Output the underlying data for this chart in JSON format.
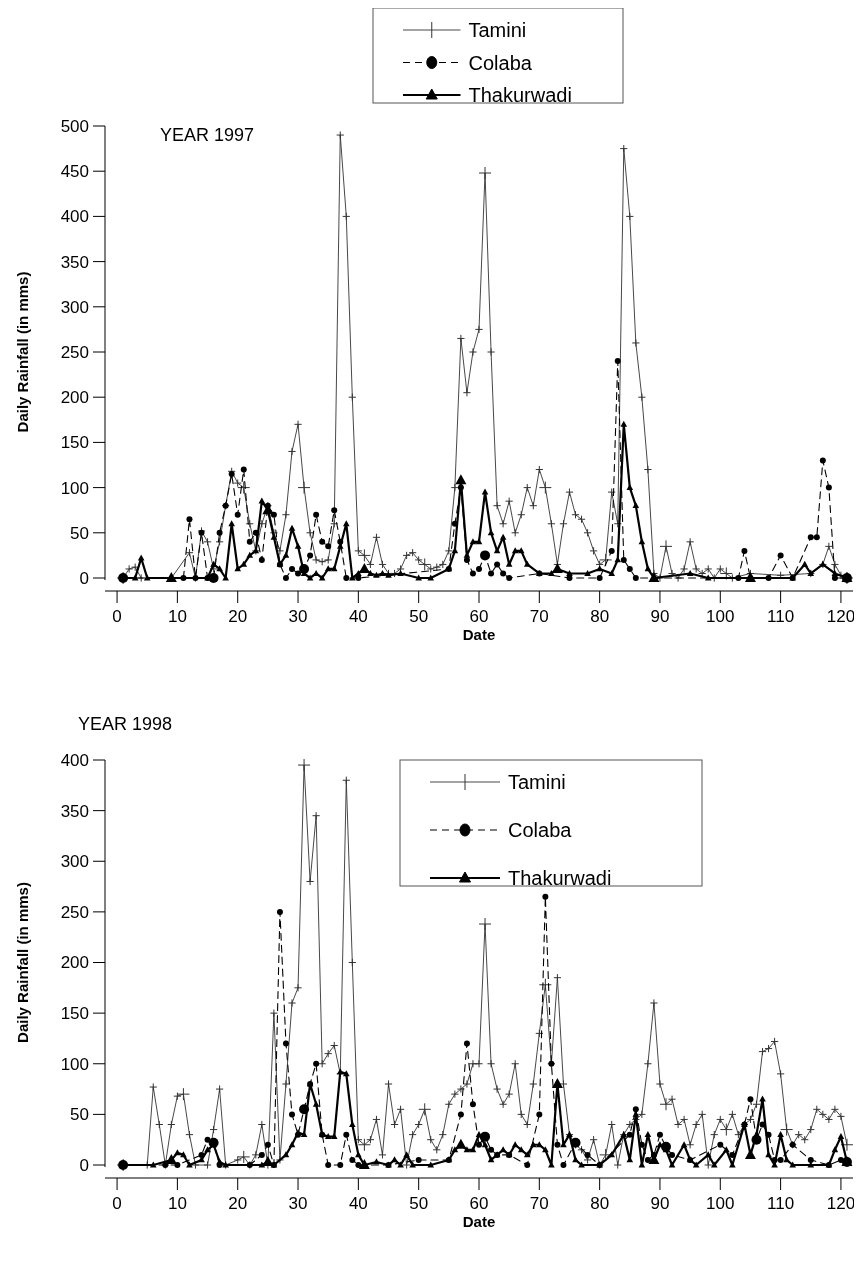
{
  "chart_data": [
    {
      "type": "line",
      "title": "YEAR 1997",
      "xlabel": "Date",
      "ylabel": "Daily Rainfall (in mms)",
      "xlim": [
        -2,
        122
      ],
      "ylim": [
        0,
        500
      ],
      "xticks": [
        0,
        10,
        20,
        30,
        40,
        50,
        60,
        70,
        80,
        90,
        100,
        110,
        120
      ],
      "yticks": [
        0,
        50,
        100,
        150,
        200,
        250,
        300,
        350,
        400,
        450,
        500
      ],
      "grid": false,
      "legend": "top",
      "series": [
        {
          "name": "Tamini",
          "color": "#333333",
          "line_style": "solid",
          "marker": "cross",
          "x": [
            1,
            2,
            3,
            4,
            9,
            12,
            13,
            14,
            15,
            16,
            17,
            18,
            19,
            20,
            21,
            22,
            23,
            24,
            25,
            26,
            27,
            28,
            29,
            30,
            31,
            32,
            33,
            34,
            35,
            36,
            37,
            38,
            39,
            40,
            41,
            42,
            43,
            44,
            45,
            46,
            47,
            48,
            49,
            50,
            51,
            52,
            53,
            54,
            55,
            56,
            57,
            58,
            59,
            60,
            61,
            62,
            63,
            64,
            65,
            66,
            67,
            68,
            69,
            70,
            71,
            72,
            73,
            74,
            75,
            76,
            77,
            78,
            79,
            80,
            81,
            82,
            83,
            84,
            85,
            86,
            87,
            88,
            89,
            90,
            91,
            92,
            93,
            94,
            95,
            96,
            97,
            98,
            99,
            100,
            101,
            102,
            105,
            110,
            115,
            117,
            118,
            119,
            120,
            121
          ],
          "values": [
            0,
            10,
            12,
            0,
            0,
            28,
            0,
            52,
            40,
            10,
            40,
            80,
            118,
            105,
            100,
            60,
            30,
            60,
            80,
            50,
            30,
            70,
            140,
            170,
            100,
            50,
            20,
            18,
            20,
            60,
            490,
            400,
            200,
            30,
            25,
            15,
            45,
            15,
            5,
            5,
            10,
            25,
            28,
            20,
            15,
            10,
            12,
            15,
            30,
            100,
            265,
            205,
            250,
            275,
            448,
            250,
            80,
            60,
            85,
            50,
            70,
            100,
            80,
            120,
            100,
            60,
            15,
            60,
            95,
            70,
            65,
            50,
            30,
            15,
            20,
            95,
            60,
            475,
            400,
            260,
            200,
            120,
            5,
            0,
            35,
            5,
            0,
            10,
            40,
            10,
            5,
            10,
            0,
            10,
            5,
            0,
            5,
            3,
            5,
            15,
            35,
            15,
            3,
            0
          ]
        },
        {
          "name": "Colaba",
          "color": "#000000",
          "line_style": "dashed",
          "marker": "circle",
          "x": [
            1,
            11,
            12,
            13,
            14,
            15,
            16,
            17,
            18,
            19,
            20,
            21,
            22,
            23,
            24,
            25,
            26,
            27,
            28,
            29,
            30,
            31,
            32,
            33,
            34,
            35,
            36,
            37,
            38,
            40,
            55,
            56,
            57,
            58,
            59,
            60,
            61,
            62,
            63,
            64,
            65,
            70,
            75,
            80,
            82,
            83,
            84,
            85,
            86,
            103,
            104,
            105,
            108,
            110,
            112,
            115,
            116,
            117,
            118,
            119,
            121
          ],
          "values": [
            0,
            0,
            65,
            0,
            50,
            0,
            0,
            50,
            80,
            115,
            70,
            120,
            40,
            50,
            20,
            80,
            70,
            15,
            0,
            10,
            5,
            10,
            25,
            70,
            40,
            35,
            75,
            40,
            0,
            0,
            10,
            60,
            100,
            20,
            5,
            10,
            25,
            5,
            15,
            5,
            0,
            5,
            0,
            0,
            30,
            240,
            20,
            10,
            0,
            0,
            30,
            0,
            0,
            25,
            0,
            45,
            45,
            130,
            100,
            0,
            0
          ]
        },
        {
          "name": "Thakurwadi",
          "color": "#000000",
          "line_style": "solid",
          "marker": "triangle",
          "x": [
            1,
            3,
            4,
            5,
            9,
            15,
            16,
            17,
            18,
            19,
            20,
            21,
            22,
            23,
            24,
            25,
            26,
            27,
            28,
            29,
            30,
            31,
            32,
            33,
            34,
            35,
            36,
            37,
            38,
            39,
            40,
            41,
            42,
            43,
            44,
            45,
            47,
            50,
            52,
            55,
            56,
            57,
            58,
            59,
            60,
            61,
            62,
            63,
            64,
            65,
            66,
            67,
            68,
            70,
            72,
            73,
            75,
            78,
            80,
            82,
            83,
            84,
            85,
            86,
            87,
            88,
            89,
            95,
            98,
            105,
            112,
            114,
            115,
            117,
            119,
            121
          ],
          "values": [
            0,
            0,
            22,
            0,
            0,
            0,
            15,
            10,
            0,
            60,
            10,
            15,
            25,
            30,
            85,
            75,
            45,
            15,
            25,
            55,
            35,
            5,
            0,
            5,
            0,
            10,
            10,
            35,
            60,
            0,
            5,
            10,
            5,
            3,
            5,
            3,
            5,
            0,
            0,
            10,
            30,
            108,
            25,
            40,
            40,
            95,
            50,
            30,
            45,
            15,
            30,
            30,
            15,
            5,
            5,
            10,
            5,
            5,
            10,
            5,
            20,
            170,
            100,
            80,
            40,
            10,
            0,
            5,
            0,
            0,
            0,
            15,
            5,
            15,
            5,
            0
          ]
        }
      ]
    },
    {
      "type": "line",
      "title": "YEAR 1998",
      "xlabel": "Date",
      "ylabel": "Daily Rainfall (in mms)",
      "xlim": [
        -2,
        122
      ],
      "ylim": [
        0,
        400
      ],
      "xticks": [
        0,
        10,
        20,
        30,
        40,
        50,
        60,
        70,
        80,
        90,
        100,
        110,
        120
      ],
      "yticks": [
        0,
        50,
        100,
        150,
        200,
        250,
        300,
        350,
        400
      ],
      "grid": false,
      "legend": "top right",
      "series": [
        {
          "name": "Tamini",
          "color": "#333333",
          "line_style": "solid",
          "marker": "cross",
          "x": [
            1,
            5,
            6,
            7,
            8,
            9,
            10,
            11,
            12,
            13,
            15,
            16,
            17,
            18,
            20,
            21,
            22,
            23,
            24,
            25,
            26,
            27,
            28,
            29,
            30,
            31,
            32,
            33,
            34,
            35,
            36,
            37,
            38,
            39,
            40,
            41,
            42,
            43,
            44,
            45,
            46,
            47,
            48,
            49,
            50,
            51,
            52,
            53,
            54,
            55,
            56,
            57,
            58,
            59,
            60,
            61,
            62,
            63,
            64,
            65,
            66,
            67,
            68,
            69,
            70,
            71,
            72,
            73,
            74,
            75,
            76,
            77,
            78,
            79,
            80,
            81,
            82,
            83,
            84,
            85,
            86,
            87,
            88,
            89,
            90,
            91,
            92,
            93,
            94,
            95,
            96,
            97,
            98,
            99,
            100,
            101,
            102,
            103,
            104,
            105,
            106,
            107,
            108,
            109,
            110,
            111,
            112,
            113,
            114,
            115,
            116,
            117,
            118,
            119,
            120,
            121
          ],
          "values": [
            0,
            0,
            77,
            40,
            0,
            40,
            68,
            70,
            30,
            0,
            0,
            35,
            75,
            0,
            5,
            8,
            0,
            10,
            40,
            0,
            150,
            5,
            80,
            160,
            175,
            395,
            280,
            345,
            100,
            110,
            118,
            90,
            380,
            200,
            25,
            20,
            25,
            45,
            10,
            80,
            40,
            55,
            0,
            30,
            40,
            55,
            25,
            15,
            30,
            60,
            70,
            75,
            80,
            100,
            100,
            238,
            100,
            75,
            60,
            70,
            100,
            50,
            40,
            80,
            130,
            178,
            100,
            185,
            80,
            30,
            20,
            15,
            5,
            25,
            0,
            10,
            40,
            0,
            30,
            40,
            45,
            50,
            100,
            160,
            80,
            60,
            65,
            40,
            45,
            20,
            40,
            50,
            0,
            30,
            45,
            35,
            50,
            30,
            40,
            45,
            60,
            112,
            115,
            122,
            90,
            35,
            20,
            30,
            25,
            35,
            55,
            50,
            45,
            55,
            48,
            20
          ]
        },
        {
          "name": "Colaba",
          "color": "#000000",
          "line_style": "dashed",
          "marker": "circle",
          "x": [
            1,
            8,
            10,
            14,
            15,
            16,
            17,
            22,
            24,
            25,
            26,
            27,
            28,
            29,
            30,
            31,
            32,
            33,
            34,
            35,
            37,
            38,
            39,
            40,
            45,
            50,
            55,
            57,
            58,
            59,
            60,
            61,
            62,
            63,
            65,
            68,
            70,
            71,
            72,
            73,
            74,
            76,
            78,
            80,
            85,
            86,
            87,
            88,
            89,
            90,
            91,
            92,
            95,
            100,
            102,
            104,
            105,
            106,
            107,
            108,
            109,
            110,
            112,
            115,
            118,
            120,
            121
          ],
          "values": [
            0,
            0,
            0,
            10,
            25,
            22,
            0,
            0,
            10,
            20,
            0,
            250,
            120,
            50,
            30,
            55,
            80,
            100,
            30,
            0,
            0,
            30,
            5,
            0,
            0,
            5,
            5,
            50,
            120,
            60,
            20,
            28,
            15,
            10,
            10,
            0,
            50,
            265,
            100,
            20,
            0,
            22,
            10,
            0,
            30,
            55,
            20,
            5,
            10,
            30,
            18,
            10,
            5,
            20,
            10,
            40,
            65,
            25,
            40,
            30,
            5,
            5,
            20,
            5,
            0,
            5,
            3
          ]
        },
        {
          "name": "Thakurwadi",
          "color": "#000000",
          "line_style": "solid",
          "marker": "triangle",
          "x": [
            1,
            6,
            9,
            10,
            11,
            12,
            14,
            15,
            16,
            17,
            18,
            24,
            25,
            26,
            28,
            29,
            30,
            31,
            32,
            33,
            34,
            35,
            36,
            37,
            38,
            39,
            40,
            41,
            43,
            45,
            46,
            47,
            48,
            49,
            52,
            55,
            56,
            57,
            58,
            59,
            60,
            61,
            62,
            63,
            64,
            65,
            66,
            67,
            68,
            69,
            70,
            71,
            72,
            73,
            74,
            75,
            76,
            77,
            80,
            82,
            84,
            85,
            86,
            87,
            88,
            89,
            90,
            91,
            92,
            94,
            95,
            96,
            98,
            99,
            101,
            102,
            104,
            105,
            106,
            107,
            108,
            109,
            110,
            111,
            112,
            115,
            118,
            119,
            120,
            121
          ],
          "values": [
            0,
            0,
            5,
            12,
            10,
            0,
            5,
            15,
            20,
            3,
            0,
            0,
            3,
            0,
            10,
            20,
            32,
            30,
            80,
            60,
            30,
            28,
            28,
            92,
            90,
            40,
            10,
            0,
            3,
            0,
            5,
            0,
            10,
            0,
            0,
            5,
            15,
            20,
            15,
            15,
            30,
            20,
            5,
            10,
            15,
            10,
            20,
            15,
            10,
            20,
            20,
            15,
            0,
            80,
            20,
            30,
            5,
            0,
            0,
            10,
            30,
            5,
            50,
            0,
            30,
            5,
            20,
            15,
            0,
            20,
            5,
            0,
            10,
            0,
            15,
            0,
            40,
            10,
            30,
            65,
            10,
            0,
            30,
            5,
            0,
            0,
            0,
            15,
            28,
            3
          ]
        }
      ]
    }
  ]
}
